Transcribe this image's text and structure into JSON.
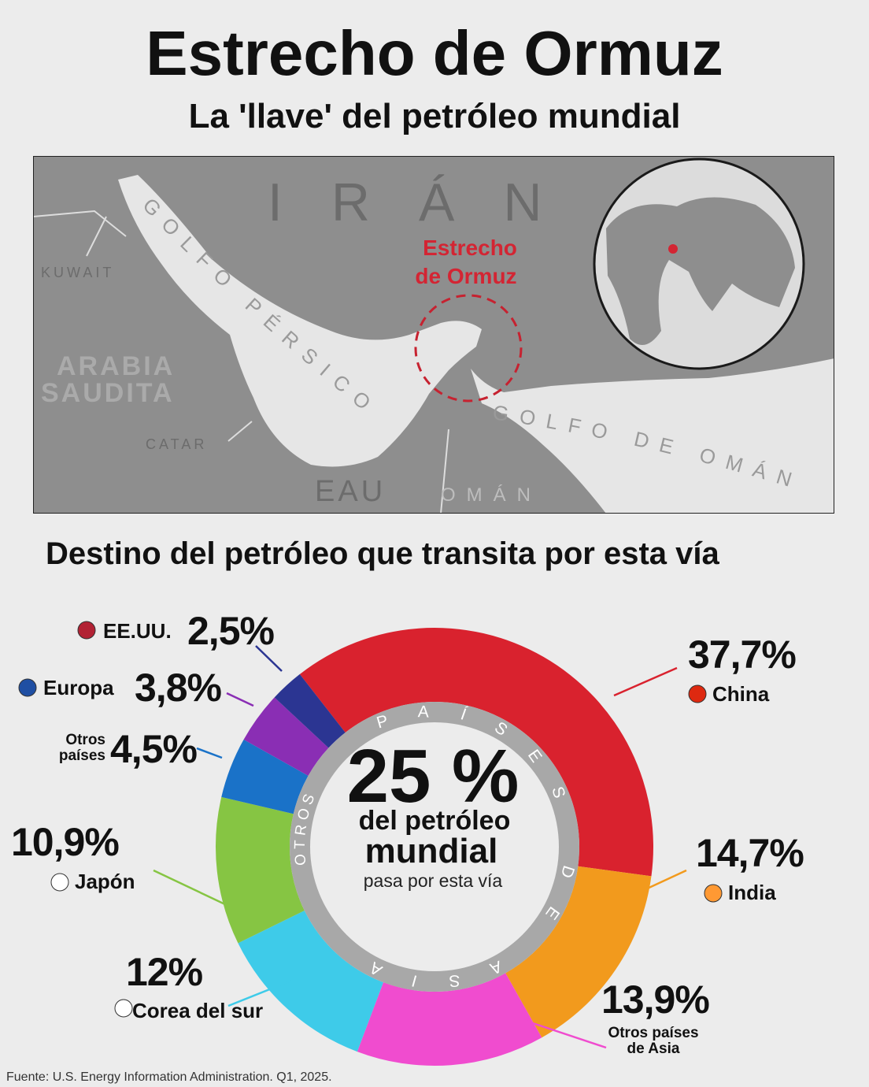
{
  "header": {
    "title": "Estrecho de Ormuz",
    "subtitle": "La 'llave' del petróleo mundial"
  },
  "map": {
    "country_iran": "IRÁN",
    "gulf_persian": "GOLFO PÉRSICO",
    "kuwait": "KUWAIT",
    "saudi_line1": "ARABIA",
    "saudi_line2": "SAUDITA",
    "qatar": "CATAR",
    "uae": "EAU",
    "oman": "OMÁN",
    "gulf_oman": "GOLFO DE OMÁN",
    "strait_line1": "Estrecho",
    "strait_line2": "de Ormuz"
  },
  "chart_data": {
    "type": "pie",
    "title": "Destino del petróleo que transita por esta vía",
    "categories": [
      "China",
      "India",
      "Otros países de Asia",
      "Corea del sur",
      "Japón",
      "Otros países",
      "Europa",
      "EE.UU."
    ],
    "values": [
      37.7,
      14.7,
      13.9,
      12,
      10.9,
      4.5,
      3.8,
      2.5
    ],
    "value_labels": [
      "37,7%",
      "14,7%",
      "13,9%",
      "12%",
      "10,9%",
      "4,5%",
      "3,8%",
      "2,5%"
    ],
    "colors": [
      "#d9222e",
      "#f29a1d",
      "#f04ccf",
      "#3ecbe9",
      "#86c543",
      "#1a72c8",
      "#8a2eb4",
      "#2b3592"
    ],
    "ring_labels": [
      "PAÍSES DE ASIA",
      "OTROS"
    ],
    "center": {
      "headline": "25 %",
      "line1": "del petróleo",
      "line2": "mundial",
      "line3": "pasa por esta vía"
    }
  },
  "footer": {
    "source": "Fuente: U.S. Energy Information Administration. Q1, 2025."
  }
}
